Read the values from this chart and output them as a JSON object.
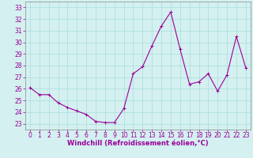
{
  "x": [
    0,
    1,
    2,
    3,
    4,
    5,
    6,
    7,
    8,
    9,
    10,
    11,
    12,
    13,
    14,
    15,
    16,
    17,
    18,
    19,
    20,
    21,
    22,
    23
  ],
  "y": [
    26.1,
    25.5,
    25.5,
    24.8,
    24.4,
    24.1,
    23.8,
    23.2,
    23.1,
    23.1,
    24.3,
    27.3,
    27.9,
    29.7,
    31.4,
    32.6,
    29.4,
    26.4,
    26.6,
    27.3,
    25.8,
    27.2,
    30.5,
    27.8
  ],
  "xlim": [
    -0.5,
    23.5
  ],
  "ylim": [
    22.5,
    33.5
  ],
  "yticks": [
    23,
    24,
    25,
    26,
    27,
    28,
    29,
    30,
    31,
    32,
    33
  ],
  "xticks": [
    0,
    1,
    2,
    3,
    4,
    5,
    6,
    7,
    8,
    9,
    10,
    11,
    12,
    13,
    14,
    15,
    16,
    17,
    18,
    19,
    20,
    21,
    22,
    23
  ],
  "xlabel": "Windchill (Refroidissement éolien,°C)",
  "line_color": "#990099",
  "marker": "+",
  "marker_color": "#990099",
  "bg_color": "#d4f0f0",
  "grid_color": "#aadddd",
  "tick_label_color": "#990099",
  "axis_color": "#888888",
  "xlabel_color": "#990099",
  "xlabel_fontsize": 6.0,
  "tick_fontsize": 5.5
}
